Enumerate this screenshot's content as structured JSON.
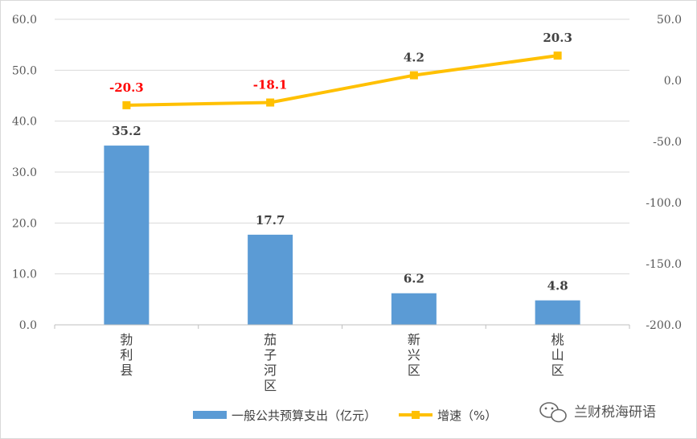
{
  "chart_data": {
    "type": "bar",
    "categories": [
      "勃利县",
      "茄子河区",
      "新兴区",
      "桃山区"
    ],
    "series": [
      {
        "name": "一般公共预算支出（亿元）",
        "type": "bar",
        "axis": "left",
        "values": [
          35.2,
          17.7,
          6.2,
          4.8
        ],
        "labels": [
          "35.2",
          "17.7",
          "6.2",
          "4.8"
        ],
        "color": "#5b9bd5"
      },
      {
        "name": "增速（%）",
        "type": "line",
        "axis": "right",
        "values": [
          -20.3,
          -18.1,
          4.2,
          20.3
        ],
        "labels": [
          "-20.3",
          "-18.1",
          "4.2",
          "20.3"
        ],
        "color": "#ffc000"
      }
    ],
    "left_axis": {
      "ylim": [
        0,
        60
      ],
      "ticks": [
        "0.0",
        "10.0",
        "20.0",
        "30.0",
        "40.0",
        "50.0",
        "60.0"
      ]
    },
    "right_axis": {
      "ylim": [
        -200,
        50
      ],
      "ticks": [
        "-200.0",
        "-150.0",
        "-100.0",
        "-50.0",
        "0.0",
        "50.0"
      ]
    },
    "grid": true,
    "legend_position": "bottom",
    "negative_label_color": "#ff0000",
    "positive_label_color": "#404040"
  },
  "watermark": {
    "text": "兰财税海研语",
    "icon": "wechat-icon"
  }
}
